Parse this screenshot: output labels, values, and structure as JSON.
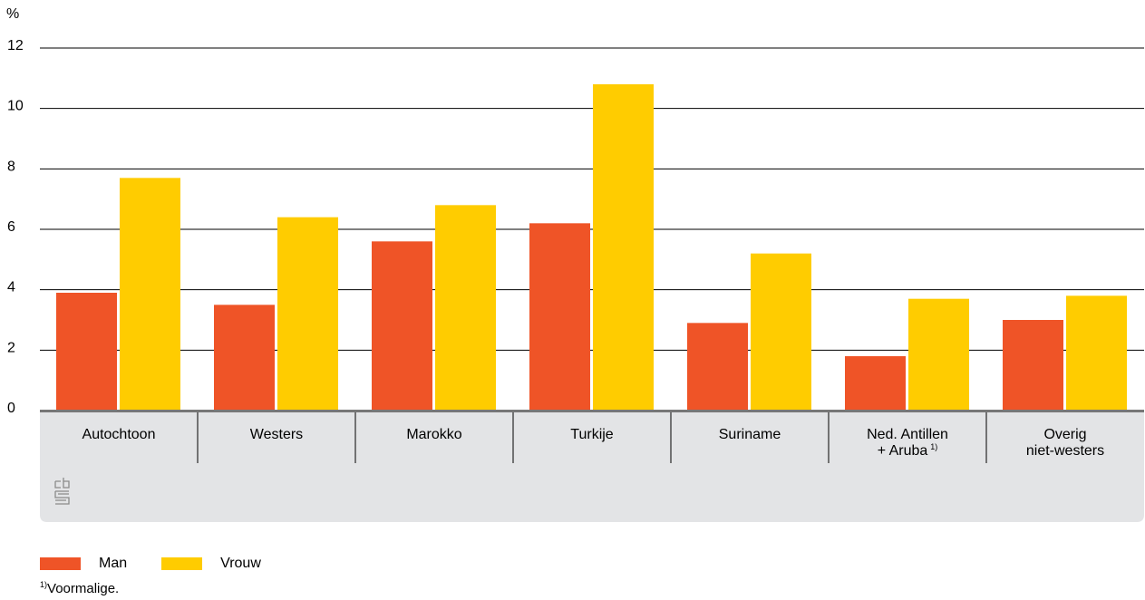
{
  "chart_data": {
    "type": "bar",
    "yunit": "%",
    "categories": [
      [
        "Autochtoon"
      ],
      [
        "Westers"
      ],
      [
        "Marokko"
      ],
      [
        "Turkije"
      ],
      [
        "Suriname"
      ],
      [
        "Ned. Antillen",
        "+ Aruba"
      ],
      [
        "Overig",
        "niet-westers"
      ]
    ],
    "category_footnote_mark": [
      "",
      "",
      "",
      "",
      "",
      "1)",
      ""
    ],
    "series": [
      {
        "name": "Man",
        "color": "#ef5427",
        "values": [
          3.9,
          3.5,
          5.6,
          6.2,
          2.9,
          1.8,
          3.0
        ]
      },
      {
        "name": "Vrouw",
        "color": "#ffcc00",
        "values": [
          7.7,
          6.4,
          6.8,
          10.8,
          5.2,
          3.7,
          3.8
        ]
      }
    ],
    "ylim": [
      0,
      12
    ],
    "yticks": [
      "0",
      "2",
      "4",
      "6",
      "8",
      "10",
      "12"
    ],
    "grid": true,
    "legend_position": "bottom-left"
  },
  "logo": {
    "icon": "cbs-logo-icon"
  },
  "footnote": {
    "mark": "1)",
    "text": "Voormalige."
  }
}
